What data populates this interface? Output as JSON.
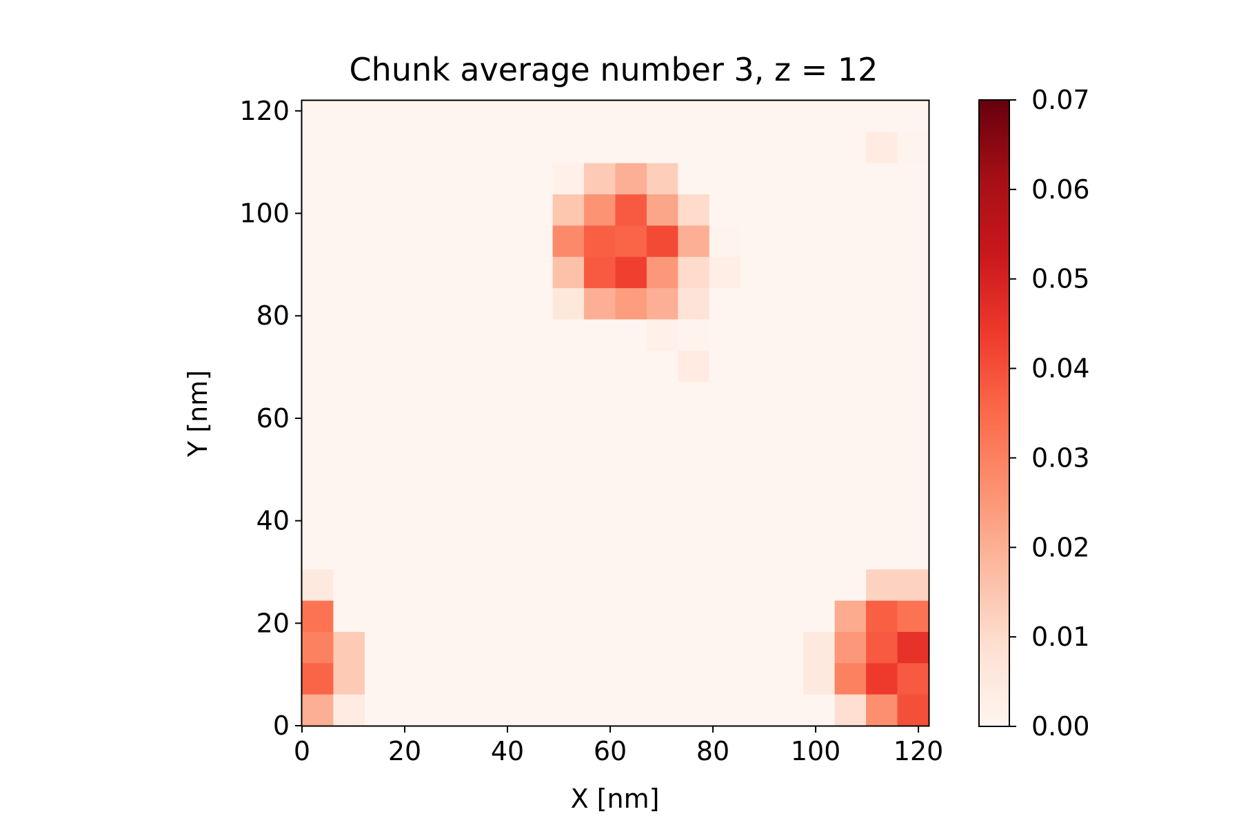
{
  "chart_data": {
    "type": "heatmap",
    "title": "Chunk average number 3, z = 12",
    "xlabel": "X [nm]",
    "ylabel": "Y [nm]",
    "xlim": [
      0,
      122
    ],
    "ylim": [
      0,
      122
    ],
    "x_ticks": [
      0,
      20,
      40,
      60,
      80,
      100,
      120
    ],
    "y_ticks": [
      0,
      20,
      40,
      60,
      80,
      100,
      120
    ],
    "grid": false,
    "cell_size": 6.1,
    "colormap": "Reds",
    "colormap_stops": [
      "#fff5f0",
      "#fee0d2",
      "#fcbba1",
      "#fc9272",
      "#fb6a4a",
      "#ef3b2c",
      "#cb181d",
      "#a50f15",
      "#67000d"
    ],
    "colorbar": {
      "range": [
        0,
        0.07
      ],
      "ticks": [
        0.0,
        0.01,
        0.02,
        0.03,
        0.04,
        0.05,
        0.06,
        0.07
      ],
      "tick_labels": [
        "0.00",
        "0.01",
        "0.02",
        "0.03",
        "0.04",
        "0.05",
        "0.06",
        "0.07"
      ]
    },
    "rows_top_to_bottom": [
      [
        0,
        0,
        0,
        0,
        0,
        0,
        0,
        0,
        0,
        0,
        0,
        0,
        0,
        0,
        0,
        0,
        0,
        0,
        0,
        0
      ],
      [
        0,
        0,
        0,
        0,
        0,
        0,
        0,
        0,
        0,
        0,
        0,
        0,
        0,
        0,
        0,
        0,
        0,
        0,
        0.004,
        0.001
      ],
      [
        0,
        0,
        0,
        0,
        0,
        0,
        0,
        0,
        0.002,
        0.014,
        0.02,
        0.013,
        0,
        0,
        0,
        0,
        0,
        0,
        0,
        0
      ],
      [
        0,
        0,
        0,
        0,
        0,
        0,
        0,
        0,
        0.015,
        0.026,
        0.038,
        0.022,
        0.01,
        0,
        0,
        0,
        0,
        0,
        0,
        0
      ],
      [
        0,
        0,
        0,
        0,
        0,
        0,
        0,
        0,
        0.028,
        0.037,
        0.036,
        0.041,
        0.02,
        0.001,
        0,
        0,
        0,
        0,
        0,
        0
      ],
      [
        0,
        0,
        0,
        0,
        0,
        0,
        0,
        0,
        0.016,
        0.038,
        0.043,
        0.025,
        0.01,
        0.003,
        0,
        0,
        0,
        0,
        0,
        0
      ],
      [
        0,
        0,
        0,
        0,
        0,
        0,
        0,
        0,
        0.006,
        0.02,
        0.024,
        0.02,
        0.007,
        0,
        0,
        0,
        0,
        0,
        0,
        0
      ],
      [
        0,
        0,
        0,
        0,
        0,
        0,
        0,
        0,
        0,
        0,
        0,
        0.002,
        0.001,
        0,
        0,
        0,
        0,
        0,
        0,
        0
      ],
      [
        0,
        0,
        0,
        0,
        0,
        0,
        0,
        0,
        0,
        0,
        0,
        0,
        0.004,
        0,
        0,
        0,
        0,
        0,
        0,
        0
      ],
      [
        0,
        0,
        0,
        0,
        0,
        0,
        0,
        0,
        0,
        0,
        0,
        0,
        0,
        0,
        0,
        0,
        0,
        0,
        0,
        0
      ],
      [
        0,
        0,
        0,
        0,
        0,
        0,
        0,
        0,
        0,
        0,
        0,
        0,
        0,
        0,
        0,
        0,
        0,
        0,
        0,
        0
      ],
      [
        0,
        0,
        0,
        0,
        0,
        0,
        0,
        0,
        0,
        0,
        0,
        0,
        0,
        0,
        0,
        0,
        0,
        0,
        0,
        0
      ],
      [
        0,
        0,
        0,
        0,
        0,
        0,
        0,
        0,
        0,
        0,
        0,
        0,
        0,
        0,
        0,
        0,
        0,
        0,
        0,
        0
      ],
      [
        0,
        0,
        0,
        0,
        0,
        0,
        0,
        0,
        0,
        0,
        0,
        0,
        0,
        0,
        0,
        0,
        0,
        0,
        0,
        0
      ],
      [
        0,
        0,
        0,
        0,
        0,
        0,
        0,
        0,
        0,
        0,
        0,
        0,
        0,
        0,
        0,
        0,
        0,
        0,
        0,
        0
      ],
      [
        0.005,
        0,
        0,
        0,
        0,
        0,
        0,
        0,
        0,
        0,
        0,
        0,
        0,
        0,
        0,
        0,
        0,
        0,
        0.012,
        0.012
      ],
      [
        0.033,
        0,
        0,
        0,
        0,
        0,
        0,
        0,
        0,
        0,
        0,
        0,
        0,
        0,
        0,
        0,
        0,
        0.021,
        0.037,
        0.033
      ],
      [
        0.03,
        0.014,
        0,
        0,
        0,
        0,
        0,
        0,
        0,
        0,
        0,
        0,
        0,
        0,
        0,
        0,
        0.005,
        0.025,
        0.038,
        0.046
      ],
      [
        0.036,
        0.014,
        0,
        0,
        0,
        0,
        0,
        0,
        0,
        0,
        0,
        0,
        0,
        0,
        0,
        0,
        0.005,
        0.03,
        0.044,
        0.038
      ],
      [
        0.02,
        0.004,
        0,
        0,
        0,
        0,
        0,
        0,
        0,
        0,
        0,
        0,
        0,
        0,
        0,
        0,
        0,
        0.009,
        0.027,
        0.04
      ]
    ]
  }
}
